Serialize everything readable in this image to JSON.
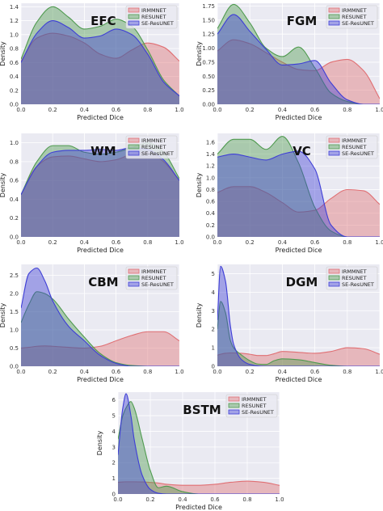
{
  "figure": {
    "xlabel": "Predicted Dice",
    "ylabel": "Density",
    "series_names": [
      "IRMMNET",
      "RESUNET",
      "SE-ResUNET"
    ],
    "colors": {
      "IRMMNET": "#e06f73",
      "RESUNET": "#4f9a4f",
      "SE-ResUNET": "#3e3ed6",
      "background": "#eaeaf2",
      "grid": "#ffffff"
    }
  },
  "chart_data": [
    {
      "type": "area",
      "title": "EFC",
      "xlim": [
        0,
        1.0
      ],
      "ylim": [
        0,
        1.45
      ],
      "xticks": [
        "0.0",
        "0.2",
        "0.4",
        "0.6",
        "0.8",
        "1.0"
      ],
      "yticks": [
        "0.0",
        "0.2",
        "0.4",
        "0.6",
        "0.8",
        "1.0",
        "1.2",
        "1.4"
      ],
      "legend": "top-right",
      "x": [
        0.0,
        0.1,
        0.2,
        0.3,
        0.4,
        0.5,
        0.6,
        0.7,
        0.8,
        0.9,
        1.0
      ],
      "series": [
        {
          "name": "IRMMNET",
          "values": [
            0.62,
            0.95,
            1.02,
            0.98,
            0.88,
            0.72,
            0.66,
            0.78,
            0.88,
            0.82,
            0.62
          ]
        },
        {
          "name": "RESUNET",
          "values": [
            0.65,
            1.18,
            1.4,
            1.25,
            1.08,
            1.12,
            1.22,
            1.12,
            0.78,
            0.35,
            0.12
          ]
        },
        {
          "name": "SE-ResUNET",
          "values": [
            0.6,
            1.02,
            1.2,
            1.1,
            0.95,
            0.98,
            1.08,
            1.0,
            0.72,
            0.32,
            0.12
          ]
        }
      ]
    },
    {
      "type": "area",
      "title": "FGM",
      "xlim": [
        0,
        1.0
      ],
      "ylim": [
        0,
        1.8
      ],
      "xticks": [
        "0.0",
        "0.2",
        "0.4",
        "0.6",
        "0.8",
        "1.0"
      ],
      "yticks": [
        "0.00",
        "0.25",
        "0.50",
        "0.75",
        "1.00",
        "1.25",
        "1.50",
        "1.75"
      ],
      "legend": "top-right",
      "x": [
        0.0,
        0.1,
        0.2,
        0.3,
        0.4,
        0.5,
        0.6,
        0.7,
        0.8,
        0.9,
        1.0
      ],
      "series": [
        {
          "name": "IRMMNET",
          "values": [
            0.95,
            1.15,
            1.08,
            0.92,
            0.75,
            0.62,
            0.6,
            0.75,
            0.8,
            0.6,
            0.1
          ]
        },
        {
          "name": "RESUNET",
          "values": [
            1.35,
            1.78,
            1.45,
            1.0,
            0.85,
            1.02,
            0.65,
            0.2,
            0.05,
            0.0,
            0.0
          ]
        },
        {
          "name": "SE-ResUNET",
          "values": [
            1.25,
            1.6,
            1.3,
            0.98,
            0.7,
            0.72,
            0.78,
            0.38,
            0.08,
            0.0,
            0.0
          ]
        }
      ]
    },
    {
      "type": "area",
      "title": "WM",
      "xlim": [
        0,
        1.0
      ],
      "ylim": [
        0,
        1.1
      ],
      "xticks": [
        "0.0",
        "0.2",
        "0.4",
        "0.6",
        "0.8",
        "1.0"
      ],
      "yticks": [
        "0.0",
        "0.2",
        "0.4",
        "0.6",
        "0.8",
        "1.0"
      ],
      "legend": "top-right",
      "x": [
        0.0,
        0.1,
        0.2,
        0.3,
        0.4,
        0.5,
        0.6,
        0.7,
        0.8,
        0.9,
        1.0
      ],
      "series": [
        {
          "name": "IRMMNET",
          "values": [
            0.45,
            0.75,
            0.85,
            0.86,
            0.83,
            0.8,
            0.82,
            0.88,
            0.9,
            0.8,
            0.6
          ]
        },
        {
          "name": "RESUNET",
          "values": [
            0.45,
            0.8,
            0.97,
            0.97,
            0.9,
            0.88,
            0.9,
            0.95,
            1.0,
            0.9,
            0.62
          ]
        },
        {
          "name": "SE-ResUNET",
          "values": [
            0.45,
            0.75,
            0.9,
            0.92,
            0.92,
            0.93,
            0.92,
            0.95,
            0.93,
            0.82,
            0.6
          ]
        }
      ]
    },
    {
      "type": "area",
      "title": "VC",
      "xlim": [
        0,
        1.0
      ],
      "ylim": [
        0,
        1.75
      ],
      "xticks": [
        "0.0",
        "0.2",
        "0.4",
        "0.6",
        "0.8",
        "1.0"
      ],
      "yticks": [
        "0.0",
        "0.2",
        "0.4",
        "0.6",
        "0.8",
        "1.0",
        "1.2",
        "1.4",
        "1.6"
      ],
      "legend": "top-right",
      "x": [
        0.0,
        0.1,
        0.2,
        0.3,
        0.4,
        0.5,
        0.6,
        0.7,
        0.8,
        0.9,
        1.0
      ],
      "series": [
        {
          "name": "IRMMNET",
          "values": [
            0.75,
            0.85,
            0.85,
            0.75,
            0.58,
            0.42,
            0.45,
            0.65,
            0.8,
            0.78,
            0.55
          ]
        },
        {
          "name": "RESUNET",
          "values": [
            1.4,
            1.65,
            1.65,
            1.48,
            1.7,
            1.25,
            0.5,
            0.1,
            0.0,
            0.0,
            0.0
          ]
        },
        {
          "name": "SE-ResUNET",
          "values": [
            1.35,
            1.4,
            1.35,
            1.3,
            1.4,
            1.45,
            1.15,
            0.2,
            0.0,
            0.0,
            0.0
          ]
        }
      ]
    },
    {
      "type": "area",
      "title": "CBM",
      "xlim": [
        0,
        1.0
      ],
      "ylim": [
        0,
        2.8
      ],
      "xticks": [
        "0.0",
        "0.2",
        "0.4",
        "0.6",
        "0.8",
        "1.0"
      ],
      "yticks": [
        "0.0",
        "0.5",
        "1.0",
        "1.5",
        "2.0",
        "2.5"
      ],
      "legend": "top-right",
      "x": [
        0.0,
        0.05,
        0.1,
        0.15,
        0.2,
        0.3,
        0.4,
        0.5,
        0.6,
        0.7,
        0.8,
        0.9,
        1.0
      ],
      "series": [
        {
          "name": "IRMMNET",
          "values": [
            0.5,
            0.52,
            0.55,
            0.56,
            0.55,
            0.52,
            0.5,
            0.55,
            0.7,
            0.85,
            0.95,
            0.95,
            0.7
          ]
        },
        {
          "name": "RESUNET",
          "values": [
            1.2,
            1.7,
            2.05,
            2.0,
            1.85,
            1.3,
            0.8,
            0.35,
            0.1,
            0.02,
            0.0,
            0.0,
            0.0
          ]
        },
        {
          "name": "SE-ResUNET",
          "values": [
            1.6,
            2.55,
            2.7,
            2.35,
            1.8,
            1.1,
            0.7,
            0.3,
            0.08,
            0.0,
            0.0,
            0.0,
            0.0
          ]
        }
      ]
    },
    {
      "type": "area",
      "title": "DGM",
      "xlim": [
        0,
        1.0
      ],
      "ylim": [
        0,
        5.5
      ],
      "xticks": [
        "0.0",
        "0.2",
        "0.4",
        "0.6",
        "0.8",
        "1.0"
      ],
      "yticks": [
        "0",
        "1",
        "2",
        "3",
        "4",
        "5"
      ],
      "legend": "top-right",
      "x": [
        0.0,
        0.02,
        0.05,
        0.08,
        0.1,
        0.15,
        0.2,
        0.25,
        0.3,
        0.35,
        0.4,
        0.5,
        0.6,
        0.7,
        0.8,
        0.9,
        1.0
      ],
      "series": [
        {
          "name": "IRMMNET",
          "values": [
            0.6,
            0.65,
            0.7,
            0.72,
            0.72,
            0.7,
            0.65,
            0.58,
            0.58,
            0.68,
            0.8,
            0.75,
            0.7,
            0.8,
            1.0,
            0.95,
            0.65
          ]
        },
        {
          "name": "RESUNET",
          "values": [
            2.0,
            3.5,
            2.9,
            1.4,
            1.0,
            0.6,
            0.3,
            0.12,
            0.1,
            0.3,
            0.4,
            0.35,
            0.2,
            0.05,
            0.0,
            0.0,
            0.0
          ]
        },
        {
          "name": "SE-ResUNET",
          "values": [
            2.5,
            5.4,
            4.6,
            2.2,
            1.2,
            0.35,
            0.1,
            0.02,
            0.0,
            0.0,
            0.0,
            0.0,
            0.0,
            0.0,
            0.0,
            0.0,
            0.0
          ]
        }
      ]
    },
    {
      "type": "area",
      "title": "BSTM",
      "xlim": [
        0,
        1.0
      ],
      "ylim": [
        0,
        6.5
      ],
      "xticks": [
        "0.0",
        "0.2",
        "0.4",
        "0.6",
        "0.8",
        "1.0"
      ],
      "yticks": [
        "0",
        "1",
        "2",
        "3",
        "4",
        "5",
        "6"
      ],
      "legend": "top-right",
      "x": [
        0.0,
        0.03,
        0.05,
        0.08,
        0.1,
        0.15,
        0.2,
        0.25,
        0.3,
        0.4,
        0.5,
        0.6,
        0.7,
        0.8,
        0.9,
        1.0
      ],
      "series": [
        {
          "name": "IRMMNET",
          "values": [
            0.75,
            0.77,
            0.78,
            0.78,
            0.78,
            0.77,
            0.74,
            0.7,
            0.62,
            0.56,
            0.56,
            0.62,
            0.75,
            0.82,
            0.75,
            0.55
          ]
        },
        {
          "name": "RESUNET",
          "values": [
            3.5,
            5.0,
            5.5,
            5.9,
            5.5,
            3.5,
            1.5,
            0.4,
            0.5,
            0.15,
            0.0,
            0.0,
            0.0,
            0.0,
            0.0,
            0.0
          ]
        },
        {
          "name": "SE-ResUNET",
          "values": [
            2.5,
            5.5,
            6.4,
            5.0,
            3.5,
            1.2,
            0.3,
            0.05,
            0.0,
            0.0,
            0.0,
            0.0,
            0.0,
            0.0,
            0.0,
            0.0
          ]
        }
      ]
    }
  ]
}
